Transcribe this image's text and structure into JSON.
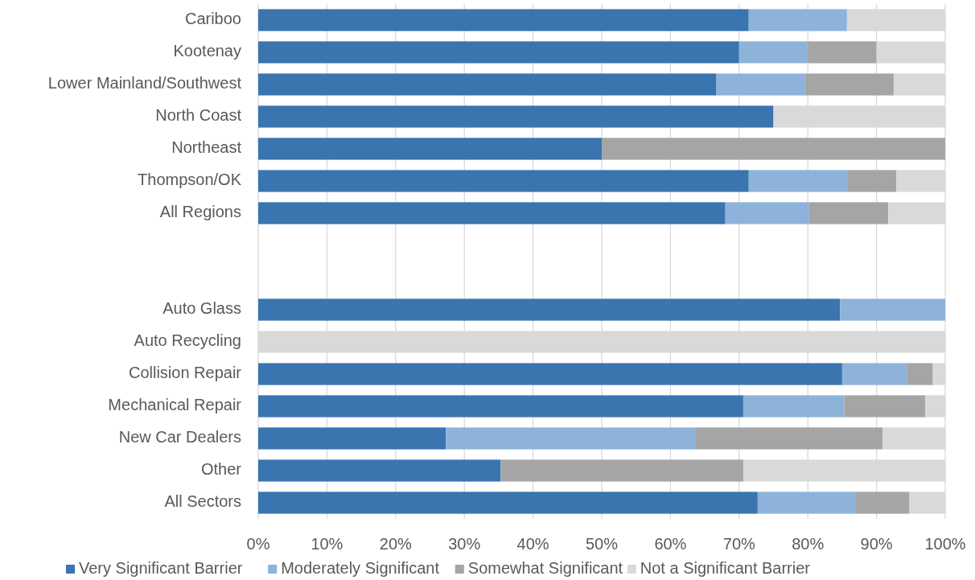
{
  "chart_data": {
    "type": "bar",
    "orientation": "horizontal",
    "stacked": true,
    "categories": [
      "Cariboo",
      "Kootenay",
      "Lower Mainland/Southwest",
      "North Coast",
      "Northeast",
      "Thompson/OK",
      "All Regions",
      null,
      null,
      "Auto Glass",
      "Auto Recycling",
      "Collision Repair",
      "Mechanical Repair",
      "New Car Dealers",
      "Other",
      "All Sectors"
    ],
    "series": [
      {
        "name": "Very Significant Barrier",
        "color": "#3a75b0",
        "values": [
          71.4,
          70,
          66.7,
          75,
          50,
          71.4,
          68.0,
          null,
          null,
          84.7,
          0,
          85.0,
          70.6,
          27.3,
          35.3,
          72.7
        ]
      },
      {
        "name": "Moderately Significant",
        "color": "#8db3db",
        "values": [
          14.3,
          10,
          12.9,
          0,
          0,
          14.3,
          12.2,
          null,
          null,
          15.3,
          0,
          9.4,
          14.7,
          36.4,
          0,
          14.2
        ]
      },
      {
        "name": "Somewhat Significant",
        "color": "#a5a5a5",
        "values": [
          0,
          10,
          12.9,
          0,
          50,
          7.2,
          11.5,
          null,
          null,
          0,
          0,
          3.8,
          11.8,
          27.2,
          35.3,
          7.9
        ]
      },
      {
        "name": "Not a Significant Barrier",
        "color": "#d9d9d9",
        "values": [
          14.3,
          10,
          7.5,
          25,
          0,
          7.1,
          8.3,
          null,
          null,
          0,
          100,
          1.8,
          2.9,
          9.1,
          29.4,
          5.2
        ]
      }
    ],
    "xlim": [
      0,
      100
    ],
    "xticks": [
      {
        "value": 0,
        "label": "0%"
      },
      {
        "value": 10,
        "label": "10%"
      },
      {
        "value": 20,
        "label": "20%"
      },
      {
        "value": 30,
        "label": "30%"
      },
      {
        "value": 40,
        "label": "40%"
      },
      {
        "value": 50,
        "label": "50%"
      },
      {
        "value": 60,
        "label": "60%"
      },
      {
        "value": 70,
        "label": "70%"
      },
      {
        "value": 80,
        "label": "80%"
      },
      {
        "value": 90,
        "label": "90%"
      },
      {
        "value": 100,
        "label": "100%"
      }
    ],
    "grid": "x",
    "legend": "bottom"
  }
}
